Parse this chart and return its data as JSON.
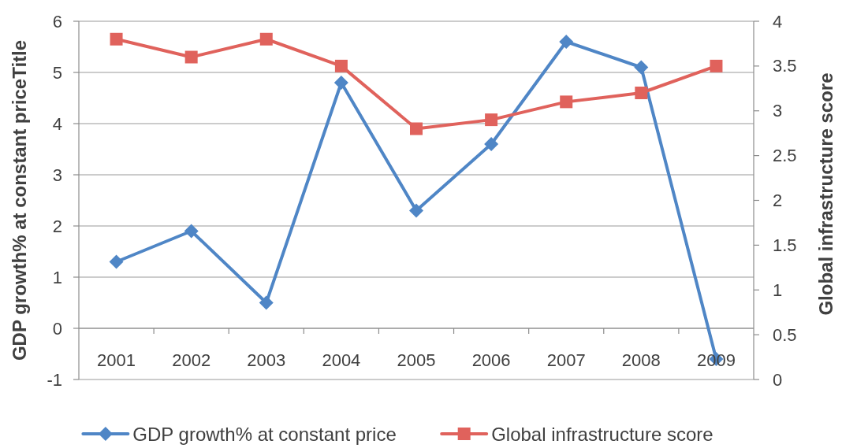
{
  "chart_data": {
    "type": "line",
    "categories": [
      "2001",
      "2002",
      "2003",
      "2004",
      "2005",
      "2006",
      "2007",
      "2008",
      "2009"
    ],
    "series": [
      {
        "name": "GDP growth% at constant price",
        "color": "#4f86c6",
        "marker": "diamond",
        "values": [
          1.3,
          1.9,
          0.5,
          4.8,
          2.3,
          3.6,
          5.6,
          5.1,
          -0.6
        ]
      },
      {
        "name": "Global infrastructure score",
        "color": "#e0625c",
        "marker": "square",
        "axis": "y2",
        "values": [
          3.8,
          3.6,
          3.8,
          3.5,
          2.8,
          2.9,
          3.1,
          3.2,
          3.5
        ]
      }
    ],
    "ylabel": "GDP growth% at constant priceTitle",
    "y2label": "Global infrastructure score",
    "ylim": [
      -1,
      6
    ],
    "yticks": [
      -1,
      0,
      1,
      2,
      3,
      4,
      5,
      6
    ],
    "y2lim": [
      0,
      4
    ],
    "y2ticks": [
      0,
      0.5,
      1,
      1.5,
      2,
      2.5,
      3,
      3.5,
      4
    ],
    "grid": "y",
    "legend": "bottom"
  }
}
